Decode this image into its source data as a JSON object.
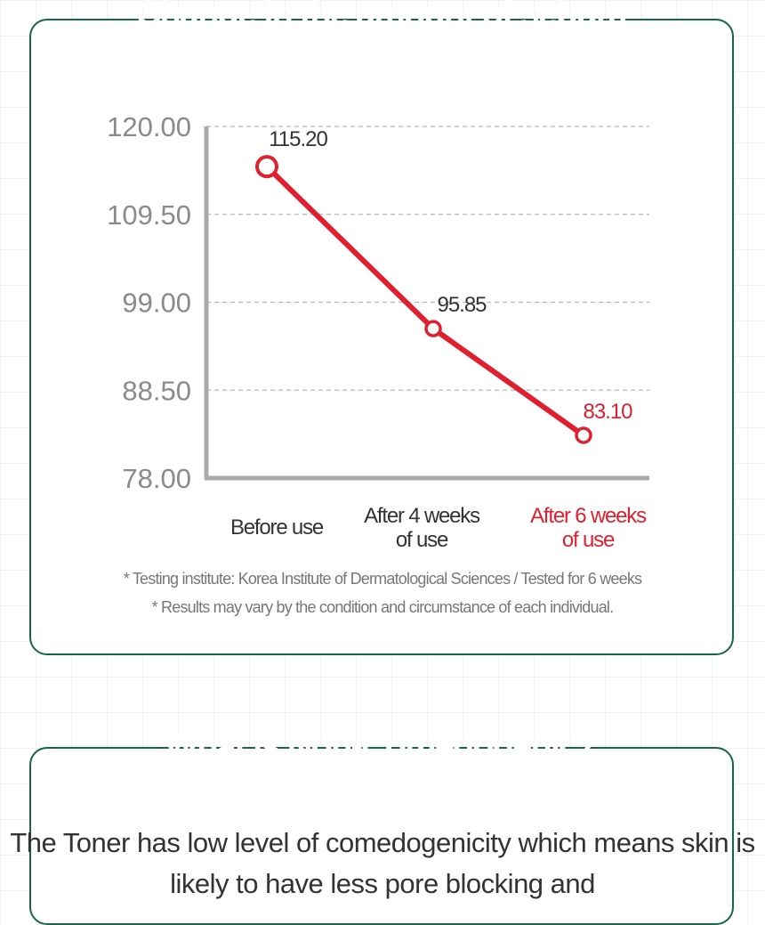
{
  "colors": {
    "accent_green": "#17664a",
    "highlight_red": "#e0202f",
    "line_red": "#e0202f",
    "axis_gray": "#aaaaaa",
    "text_dark": "#333333"
  },
  "section1": {
    "title": "Change in the amount of sebum"
  },
  "chart_data": {
    "type": "line",
    "title": "Change in the amount of sebum",
    "categories": [
      [
        "Before use"
      ],
      [
        "After 4 weeks",
        "of use"
      ],
      [
        "After 6 weeks",
        "of use"
      ]
    ],
    "highlight_category_index": 2,
    "series": [
      {
        "values": [
          115.2,
          95.85,
          83.1
        ]
      }
    ],
    "value_labels": [
      "115.20",
      "95.85",
      "83.10"
    ],
    "yticks": [
      "120.00",
      "109.50",
      "99.00",
      "88.50",
      "78.00"
    ],
    "ytick_values": [
      120.0,
      109.5,
      99.0,
      88.5,
      78.0
    ],
    "ylim": [
      78.0,
      120.0
    ],
    "grid": "dashed-horizontal",
    "xlabel": "",
    "ylabel": ""
  },
  "footnotes": [
    "* Testing institute: Korea Institute of Dermatological Sciences / Tested for 6 weeks",
    "* Results may vary by the condition and circumstance of each individual."
  ],
  "section2": {
    "title": "What is Non-Comedogenic?",
    "body": "The Toner has low level of comedogenicity which means skin is likely to have less pore blocking and"
  }
}
